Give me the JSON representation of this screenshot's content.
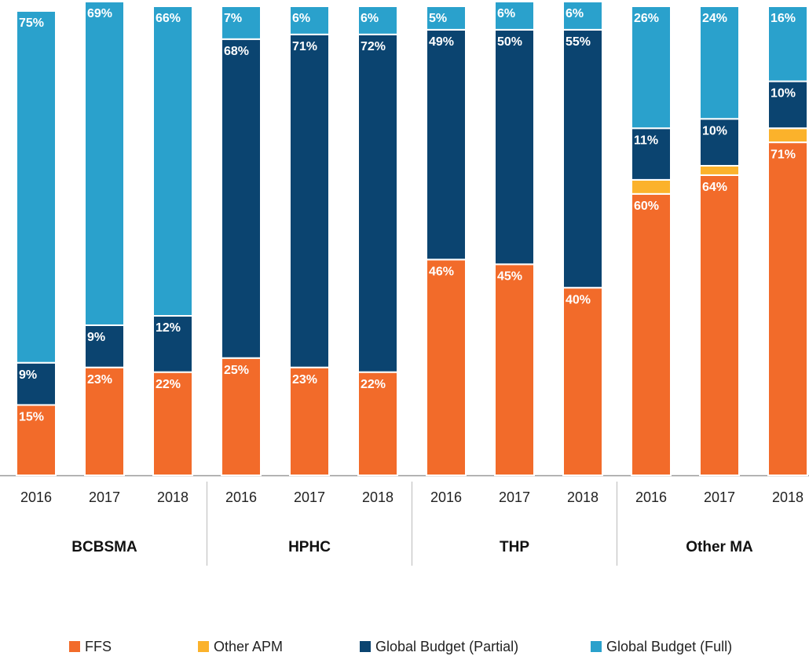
{
  "chart_data": {
    "type": "stacked_bar",
    "categories": [
      "2016",
      "2017",
      "2018",
      "2016",
      "2017",
      "2018",
      "2016",
      "2017",
      "2018",
      "2016",
      "2017",
      "2018"
    ],
    "groups": [
      "BCBSMA",
      "HPHC",
      "THP",
      "Other MA"
    ],
    "ylim": [
      0,
      100
    ],
    "series": [
      {
        "name": "FFS",
        "color": "#f26b2a",
        "values": [
          15,
          23,
          22,
          25,
          23,
          22,
          46,
          45,
          40,
          60,
          64,
          71
        ],
        "value_labels": [
          "15%",
          "23%",
          "22%",
          "25%",
          "23%",
          "22%",
          "46%",
          "45%",
          "40%",
          "60%",
          "64%",
          "71%"
        ]
      },
      {
        "name": "Other APM",
        "color": "#fbb22b",
        "values": [
          0,
          0,
          0,
          0,
          0,
          0,
          0,
          0,
          0,
          3,
          2,
          3
        ]
      },
      {
        "name": "Global Budget (Partial)",
        "color": "#0b4470",
        "values": [
          9,
          9,
          12,
          68,
          71,
          72,
          49,
          50,
          55,
          11,
          10,
          10
        ],
        "value_labels": [
          "9%",
          "9%",
          "12%",
          "68%",
          "71%",
          "72%",
          "49%",
          "50%",
          "55%",
          "11%",
          "10%",
          "10%"
        ]
      },
      {
        "name": "Global Budget (Full)",
        "color": "#2aa1cc",
        "values": [
          75,
          69,
          66,
          7,
          6,
          6,
          5,
          6,
          6,
          26,
          24,
          16
        ],
        "value_labels": [
          "75%",
          "69%",
          "66%",
          "7%",
          "6%",
          "6%",
          "5%",
          "6%",
          "6%",
          "26%",
          "24%",
          "16%"
        ]
      }
    ]
  }
}
